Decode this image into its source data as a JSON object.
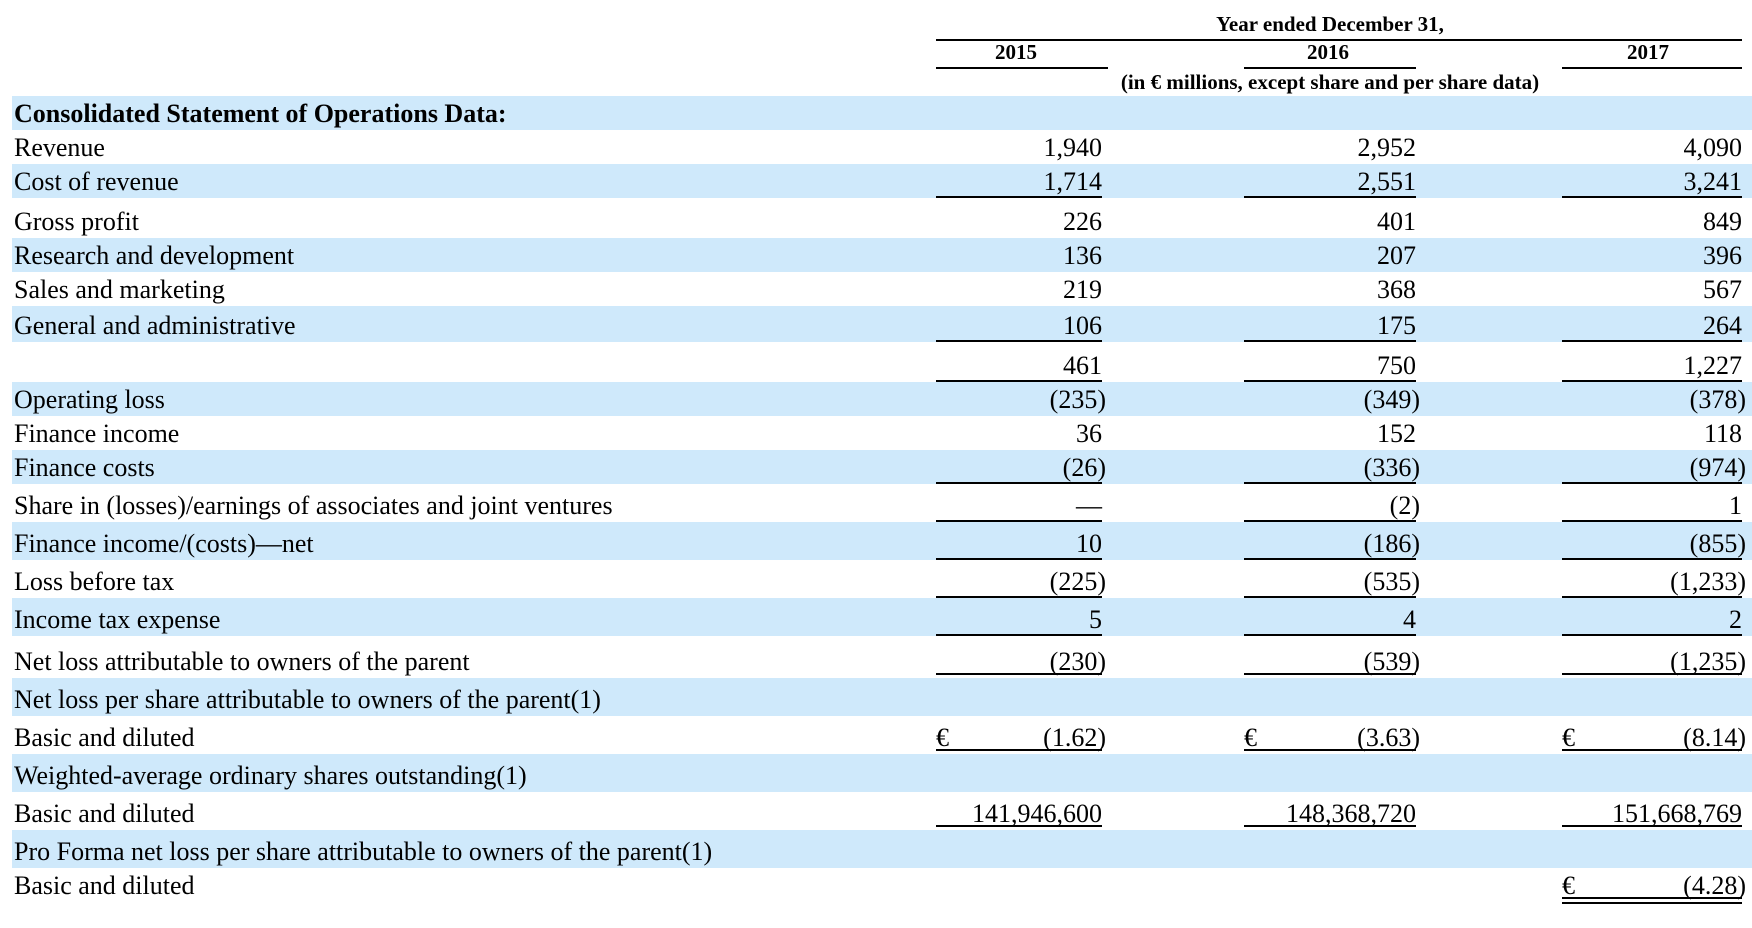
{
  "header": {
    "period_title": "Year ended December 31,",
    "years": [
      "2015",
      "2016",
      "2017"
    ],
    "units": "(in € millions, except share and per share data)"
  },
  "rows": [
    {
      "label": "Consolidated Statement of Operations Data:",
      "section": true,
      "values": [
        "",
        "",
        ""
      ]
    },
    {
      "label": "Revenue",
      "values": [
        "1,940",
        "2,952",
        "4,090"
      ]
    },
    {
      "label": "Cost of revenue",
      "values": [
        "1,714",
        "2,551",
        "3,241"
      ]
    },
    {
      "label": "Gross profit",
      "values": [
        "226",
        "401",
        "849"
      ]
    },
    {
      "label": "Research and development",
      "values": [
        "136",
        "207",
        "396"
      ]
    },
    {
      "label": "Sales and marketing",
      "values": [
        "219",
        "368",
        "567"
      ]
    },
    {
      "label": "General and administrative",
      "values": [
        "106",
        "175",
        "264"
      ]
    },
    {
      "label": "",
      "values": [
        "461",
        "750",
        "1,227"
      ]
    },
    {
      "label": "Operating loss",
      "values": [
        "(235)",
        "(349)",
        "(378)"
      ]
    },
    {
      "label": "Finance income",
      "values": [
        "36",
        "152",
        "118"
      ]
    },
    {
      "label": "Finance costs",
      "values": [
        "(26)",
        "(336)",
        "(974)"
      ]
    },
    {
      "label": "Share in (losses)/earnings of associates and joint ventures",
      "values": [
        "—",
        "(2)",
        "1"
      ]
    },
    {
      "label": "Finance income/(costs)—net",
      "values": [
        "10",
        "(186)",
        "(855)"
      ]
    },
    {
      "label": "Loss before tax",
      "values": [
        "(225)",
        "(535)",
        "(1,233)"
      ]
    },
    {
      "label": "Income tax expense",
      "values": [
        "5",
        "4",
        "2"
      ]
    },
    {
      "label": "Net loss attributable to owners of the parent",
      "values": [
        "(230)",
        "(539)",
        "(1,235)"
      ]
    },
    {
      "label": "Net loss per share attributable to owners of the parent(1)",
      "values": [
        "",
        "",
        ""
      ]
    },
    {
      "label": "Basic and diluted",
      "currency": "€",
      "values": [
        "(1.62)",
        "(3.63)",
        "(8.14)"
      ]
    },
    {
      "label": "Weighted-average ordinary shares outstanding(1)",
      "values": [
        "",
        "",
        ""
      ]
    },
    {
      "label": "Basic and diluted",
      "values": [
        "141,946,600",
        "148,368,720",
        "151,668,769"
      ]
    },
    {
      "label": "Pro Forma net loss per share attributable to owners of the parent(1)",
      "values": [
        "",
        "",
        ""
      ]
    },
    {
      "label": "Basic and diluted",
      "currency": "€",
      "values": [
        "",
        "",
        "(4.28)"
      ]
    }
  ]
}
